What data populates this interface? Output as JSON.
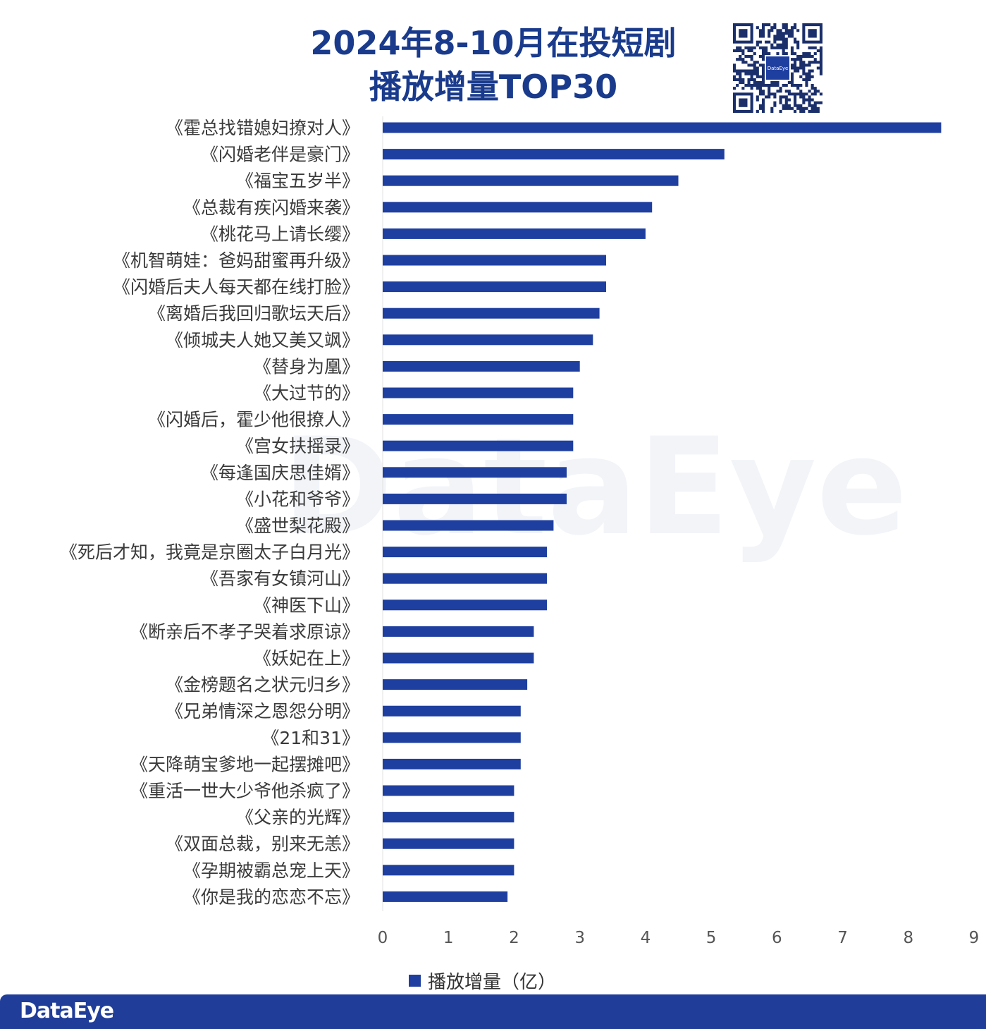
{
  "title_line1": "2024年8-10月在投短剧",
  "title_line2": "播放增量TOP30",
  "qr_logo_text": "DataEye",
  "watermark_text": "DataEye",
  "footer_logo_text": "DataEye",
  "bar_color": "#1f3fa0",
  "chart_data": {
    "type": "bar",
    "orientation": "horizontal",
    "title": "2024年8-10月在投短剧播放增量TOP30",
    "xlabel": "",
    "ylabel": "",
    "xlim": [
      0,
      9
    ],
    "xticks": [
      0,
      1,
      2,
      3,
      4,
      5,
      6,
      7,
      8,
      9
    ],
    "grid": false,
    "legend_position": "bottom",
    "categories": [
      "《霍总找错媳妇撩对人》",
      "《闪婚老伴是豪门》",
      "《福宝五岁半》",
      "《总裁有疾闪婚来袭》",
      "《桃花马上请长缨》",
      "《机智萌娃：爸妈甜蜜再升级》",
      "《闪婚后夫人每天都在线打脸》",
      "《离婚后我回归歌坛天后》",
      "《倾城夫人她又美又飒》",
      "《替身为凰》",
      "《大过节的》",
      "《闪婚后，霍少他很撩人》",
      "《宫女扶摇录》",
      "《每逢国庆思佳婿》",
      "《小花和爷爷》",
      "《盛世梨花殿》",
      "《死后才知，我竟是京圈太子白月光》",
      "《吾家有女镇河山》",
      "《神医下山》",
      "《断亲后不孝子哭着求原谅》",
      "《妖妃在上》",
      "《金榜题名之状元归乡》",
      "《兄弟情深之恩怨分明》",
      "《21和31》",
      "《天降萌宝爹地一起摆摊吧》",
      "《重活一世大少爷他杀疯了》",
      "《父亲的光辉》",
      "《双面总裁，别来无恙》",
      "《孕期被霸总宠上天》",
      "《你是我的恋恋不忘》"
    ],
    "series": [
      {
        "name": "播放增量（亿）",
        "values": [
          8.5,
          5.2,
          4.5,
          4.1,
          4.0,
          3.4,
          3.4,
          3.3,
          3.2,
          3.0,
          2.9,
          2.9,
          2.9,
          2.8,
          2.8,
          2.6,
          2.5,
          2.5,
          2.5,
          2.3,
          2.3,
          2.2,
          2.1,
          2.1,
          2.1,
          2.0,
          2.0,
          2.0,
          2.0,
          1.9
        ]
      }
    ]
  }
}
